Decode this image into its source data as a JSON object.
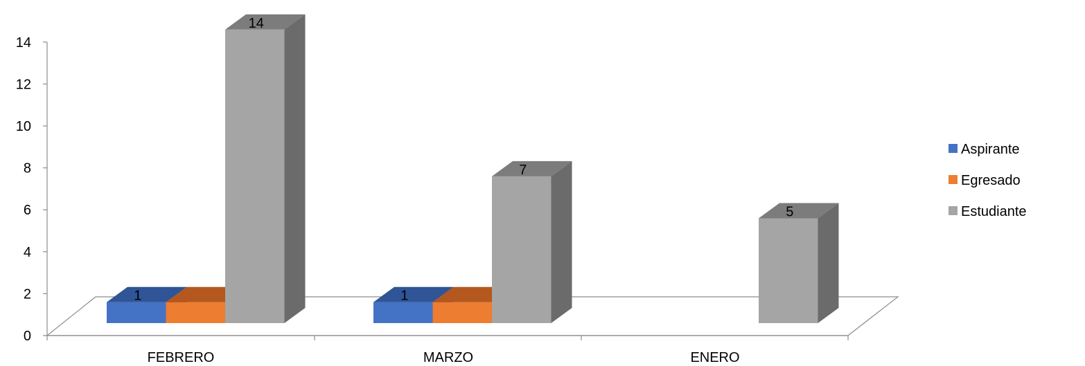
{
  "chart_data": {
    "type": "bar",
    "categories": [
      "FEBRERO",
      "MARZO",
      "ENERO"
    ],
    "series": [
      {
        "name": "Aspirante",
        "values": [
          1,
          1,
          0
        ],
        "labels": [
          "1",
          "1",
          ""
        ],
        "color": "#4472C4",
        "top_color": "#2F5597",
        "side_color": "#2F5597"
      },
      {
        "name": "Egresado",
        "values": [
          1,
          1,
          0
        ],
        "labels": [
          "",
          "",
          ""
        ],
        "color": "#ED7D31",
        "top_color": "#B4581F",
        "side_color": "#B4581F"
      },
      {
        "name": "Estudiante",
        "values": [
          14,
          7,
          5
        ],
        "labels": [
          "14",
          "7",
          "5"
        ],
        "color": "#A5A5A5",
        "top_color": "#7C7C7C",
        "side_color": "#6B6B6B"
      }
    ],
    "title": "",
    "xlabel": "",
    "ylabel": "",
    "ylim": [
      0,
      14
    ],
    "yticks": [
      0,
      2,
      4,
      6,
      8,
      10,
      12,
      14
    ],
    "grid": false,
    "legend_position": "right",
    "style": "3d-column"
  }
}
